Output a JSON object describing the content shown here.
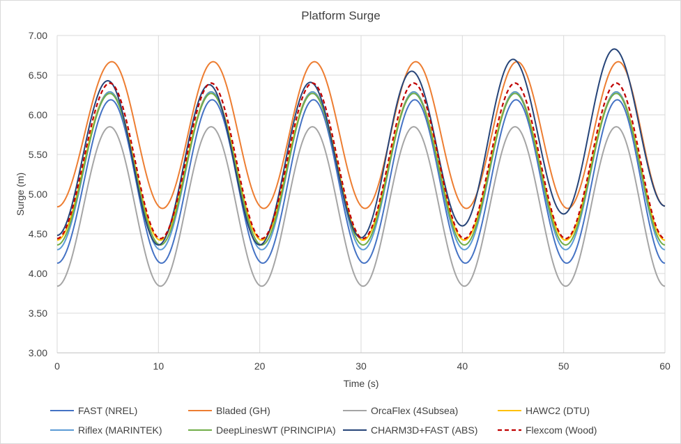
{
  "chart_data": {
    "type": "line",
    "title": "Platform Surge",
    "xlabel": "Time (s)",
    "ylabel": "Surge (m)",
    "xlim": [
      0,
      60
    ],
    "ylim": [
      3.0,
      7.0
    ],
    "x_ticks": [
      "0",
      "10",
      "20",
      "30",
      "40",
      "50",
      "60"
    ],
    "y_ticks": [
      "3.00",
      "3.50",
      "4.00",
      "4.50",
      "5.00",
      "5.50",
      "6.00",
      "6.50",
      "7.00"
    ],
    "grid": true,
    "legend_position": "bottom",
    "period_s": 10,
    "series": [
      {
        "name": "FAST (NREL)",
        "color": "#4472c4",
        "dash": false,
        "x": [
          0,
          5.3,
          10.3,
          15.3,
          20.3,
          25.3,
          30.3,
          35.3,
          40.3,
          45.3,
          50.3,
          55.3,
          60
        ],
        "values": [
          4.13,
          6.19,
          4.13,
          6.19,
          4.13,
          6.19,
          4.13,
          6.19,
          4.13,
          6.19,
          4.13,
          6.19,
          4.13
        ]
      },
      {
        "name": "Bladed (GH)",
        "color": "#ed7d31",
        "dash": false,
        "x": [
          0,
          5.4,
          10.4,
          15.4,
          20.4,
          25.4,
          30.4,
          35.4,
          40.4,
          45.4,
          50.4,
          55.4,
          60
        ],
        "values": [
          4.84,
          6.67,
          4.82,
          6.67,
          4.82,
          6.67,
          4.82,
          6.67,
          4.82,
          6.67,
          4.82,
          6.67,
          4.85
        ]
      },
      {
        "name": "OrcaFlex (4Subsea)",
        "color": "#a5a5a5",
        "dash": false,
        "x": [
          0,
          5.2,
          10.2,
          15.2,
          20.2,
          25.2,
          30.2,
          35.2,
          40.2,
          45.2,
          50.2,
          55.2,
          60
        ],
        "values": [
          3.84,
          5.85,
          3.84,
          5.85,
          3.84,
          5.85,
          3.84,
          5.85,
          3.84,
          5.85,
          3.84,
          5.85,
          3.84
        ]
      },
      {
        "name": "HAWC2 (DTU)",
        "color": "#ffc000",
        "dash": false,
        "x": [
          0,
          5.2,
          10.2,
          15.2,
          20.2,
          25.2,
          30.2,
          35.2,
          40.2,
          45.2,
          50.2,
          55.2,
          60
        ],
        "values": [
          4.42,
          6.29,
          4.42,
          6.29,
          4.42,
          6.29,
          4.42,
          6.29,
          4.42,
          6.29,
          4.42,
          6.29,
          4.42
        ]
      },
      {
        "name": "Riflex (MARINTEK)",
        "color": "#5b9bd5",
        "dash": false,
        "x": [
          0,
          5.2,
          10.2,
          15.2,
          20.2,
          25.2,
          30.2,
          35.2,
          40.2,
          45.2,
          50.2,
          55.2,
          60
        ],
        "values": [
          4.3,
          6.29,
          4.3,
          6.29,
          4.3,
          6.29,
          4.3,
          6.29,
          4.3,
          6.29,
          4.3,
          6.29,
          4.3
        ]
      },
      {
        "name": "DeepLinesWT (PRINCIPIA)",
        "color": "#70ad47",
        "dash": false,
        "x": [
          0,
          5.2,
          10.2,
          15.2,
          20.2,
          25.2,
          30.2,
          35.2,
          40.2,
          45.2,
          50.2,
          55.2,
          60
        ],
        "values": [
          4.36,
          6.27,
          4.36,
          6.27,
          4.36,
          6.27,
          4.36,
          6.27,
          4.36,
          6.27,
          4.36,
          6.27,
          4.36
        ]
      },
      {
        "name": "CHARM3D+FAST (ABS)",
        "color": "#264478",
        "dash": false,
        "x": [
          0,
          5.0,
          10.0,
          15.0,
          20.0,
          25.0,
          30.0,
          35.0,
          40.0,
          45.0,
          50.0,
          55.0,
          60
        ],
        "values": [
          4.48,
          6.43,
          4.36,
          6.38,
          4.36,
          6.41,
          4.45,
          6.55,
          4.6,
          6.7,
          4.75,
          6.83,
          4.85
        ]
      },
      {
        "name": "Flexcom (Wood)",
        "color": "#c00000",
        "dash": true,
        "x": [
          0,
          5.2,
          10.2,
          15.2,
          20.2,
          25.2,
          30.2,
          35.2,
          40.2,
          45.2,
          50.2,
          55.2,
          60
        ],
        "values": [
          4.44,
          6.4,
          4.44,
          6.4,
          4.44,
          6.4,
          4.44,
          6.4,
          4.44,
          6.4,
          4.44,
          6.4,
          4.44
        ]
      }
    ]
  }
}
